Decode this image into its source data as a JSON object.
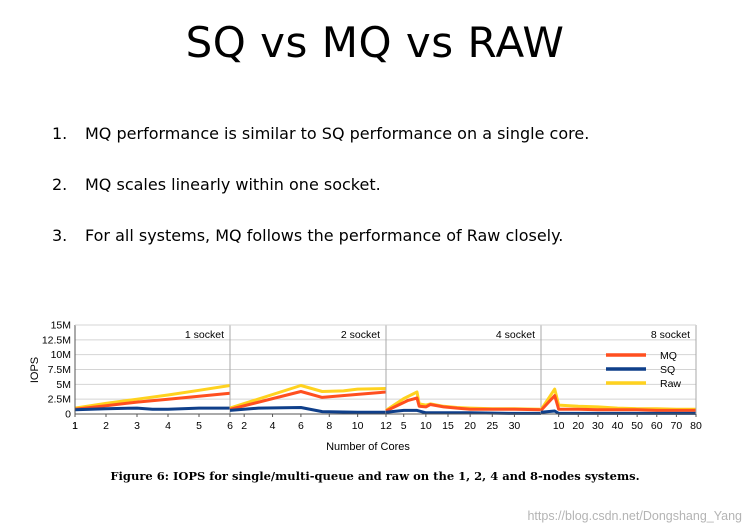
{
  "slide": {
    "title": "SQ vs MQ vs RAW",
    "bullets": [
      {
        "num": "1.",
        "text": "MQ performance is similar to SQ performance on a single core."
      },
      {
        "num": "2.",
        "text": "MQ scales linearly within one socket."
      },
      {
        "num": "3.",
        "text": "For all systems, MQ follows the performance of Raw closely."
      }
    ],
    "caption": "Figure 6: IOPS for single/multi-queue and raw on the 1, 2, 4 and 8-nodes systems.",
    "watermark": "https://blog.csdn.net/Dongshang_Yang"
  },
  "chart_data": {
    "type": "line",
    "xlabel": "Number of Cores",
    "ylabel": "IOPS",
    "ylim": [
      0,
      15
    ],
    "yticks": [
      0,
      2.5,
      5,
      7.5,
      10,
      12.5,
      15
    ],
    "ytick_labels": [
      "0",
      "2.5M",
      "5M",
      "7.5M",
      "10M",
      "12.5M",
      "15M"
    ],
    "grid": true,
    "legend": "right",
    "panels": [
      {
        "label": "1 socket",
        "xticks": [
          1,
          2,
          3,
          4,
          5,
          6
        ],
        "xlim": [
          1,
          6
        ],
        "series": [
          {
            "name": "MQ",
            "color": "#ff4f1f",
            "x": [
              1,
              2,
              3,
              4,
              5,
              6
            ],
            "y": [
              0.8,
              1.4,
              2.0,
              2.5,
              3.0,
              3.5
            ]
          },
          {
            "name": "SQ",
            "color": "#0f3f8a",
            "x": [
              1,
              2,
              3,
              3.5,
              4,
              5,
              6
            ],
            "y": [
              0.7,
              0.9,
              1.0,
              0.8,
              0.8,
              1.0,
              1.0
            ]
          },
          {
            "name": "Raw",
            "color": "#ffd21f",
            "x": [
              1,
              2,
              3,
              4,
              5,
              6
            ],
            "y": [
              1.0,
              1.8,
              2.5,
              3.2,
              4.0,
              4.8
            ]
          }
        ]
      },
      {
        "label": "2 socket",
        "xticks": [
          2,
          4,
          6,
          8,
          10,
          12
        ],
        "xlim": [
          1,
          12
        ],
        "series": [
          {
            "name": "MQ",
            "color": "#ff4f1f",
            "x": [
              1,
              6,
              7.5,
              10,
              12
            ],
            "y": [
              0.8,
              3.8,
              2.8,
              3.3,
              3.7
            ]
          },
          {
            "name": "SQ",
            "color": "#0f3f8a",
            "x": [
              1,
              3,
              6,
              7.5,
              10,
              12
            ],
            "y": [
              0.6,
              1.0,
              1.1,
              0.4,
              0.3,
              0.3
            ]
          },
          {
            "name": "Raw",
            "color": "#ffd21f",
            "x": [
              1,
              6,
              7.5,
              9,
              10,
              12
            ],
            "y": [
              1.0,
              4.8,
              3.8,
              3.9,
              4.2,
              4.3
            ]
          }
        ]
      },
      {
        "label": "4 socket",
        "xticks": [
          5,
          10,
          15,
          20,
          25,
          30
        ],
        "xlim": [
          1,
          36
        ],
        "series": [
          {
            "name": "MQ",
            "color": "#ff4f1f",
            "x": [
              1,
              6,
              8,
              8.5,
              10,
              11,
              14,
              17,
              20,
              25,
              30,
              36
            ],
            "y": [
              0.5,
              2.3,
              2.7,
              1.3,
              1.2,
              1.6,
              1.2,
              1.0,
              0.8,
              0.8,
              0.8,
              0.7
            ]
          },
          {
            "name": "SQ",
            "color": "#0f3f8a",
            "x": [
              1,
              5,
              8,
              10,
              20,
              30,
              36
            ],
            "y": [
              0.3,
              0.6,
              0.6,
              0.2,
              0.2,
              0.1,
              0.1
            ]
          },
          {
            "name": "Raw",
            "color": "#ffd21f",
            "x": [
              1,
              5,
              8,
              8.5,
              10,
              11,
              14,
              17,
              20,
              25,
              30,
              36
            ],
            "y": [
              0.6,
              2.6,
              3.7,
              1.7,
              1.5,
              1.7,
              1.3,
              1.1,
              1.0,
              0.9,
              0.9,
              0.8
            ]
          }
        ]
      },
      {
        "label": "8 socket",
        "xticks": [
          10,
          20,
          30,
          40,
          50,
          60,
          70,
          80
        ],
        "xlim": [
          1,
          80
        ],
        "series": [
          {
            "name": "MQ",
            "color": "#ff4f1f",
            "x": [
              1,
              8,
              10,
              20,
              30,
              40,
              50,
              60,
              70,
              80
            ],
            "y": [
              0.6,
              3.1,
              0.8,
              0.8,
              0.7,
              0.7,
              0.7,
              0.6,
              0.6,
              0.6
            ]
          },
          {
            "name": "SQ",
            "color": "#0f3f8a",
            "x": [
              1,
              8,
              10,
              20,
              30,
              40,
              50,
              60,
              70,
              80
            ],
            "y": [
              0.3,
              0.5,
              0.1,
              0.1,
              0.1,
              0.1,
              0.1,
              0.1,
              0.1,
              0.1
            ]
          },
          {
            "name": "Raw",
            "color": "#ffd21f",
            "x": [
              1,
              8,
              10,
              20,
              30,
              40,
              50,
              60,
              70,
              80
            ],
            "y": [
              0.7,
              4.2,
              1.5,
              1.3,
              1.2,
              1.0,
              0.9,
              0.9,
              0.8,
              0.8
            ]
          }
        ]
      }
    ]
  }
}
